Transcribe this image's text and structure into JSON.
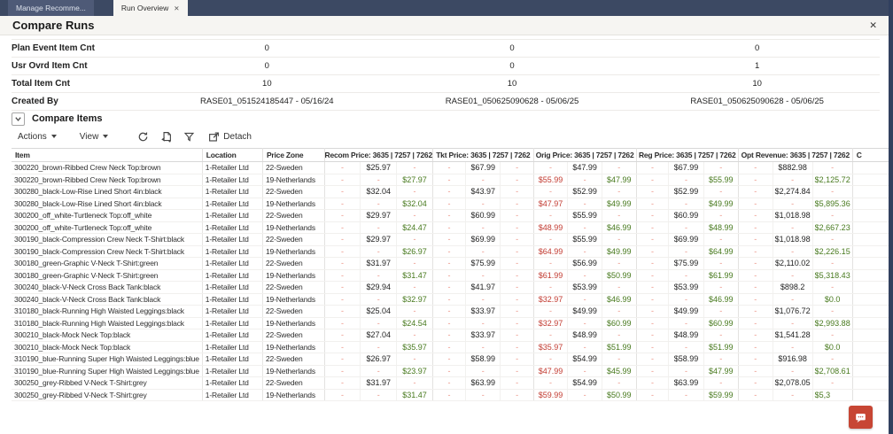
{
  "tabs": [
    {
      "label": "Manage Recomme..."
    },
    {
      "label": "Run Overview",
      "close_icon": "✕"
    }
  ],
  "panel": {
    "title": "Compare Runs",
    "close_icon": "✕"
  },
  "summary": {
    "rows": [
      {
        "label": "Plan Event Item Cnt",
        "values": [
          "0",
          "0",
          "0"
        ]
      },
      {
        "label": "Usr Ovrd Item Cnt",
        "values": [
          "0",
          "0",
          "1"
        ]
      },
      {
        "label": "Total Item Cnt",
        "values": [
          "10",
          "10",
          "10"
        ]
      },
      {
        "label": "Created By",
        "values": [
          "RASE01_051524185447 - 05/16/24",
          "RASE01_050625090628 - 05/06/25",
          "RASE01_050625090628 - 05/06/25"
        ]
      }
    ]
  },
  "section": {
    "title": "Compare Items"
  },
  "toolbar": {
    "actions_label": "Actions",
    "view_label": "View",
    "detach_label": "Detach",
    "icons": [
      "refresh-icon",
      "export-icon",
      "filter-icon",
      "detach-icon"
    ]
  },
  "table": {
    "columns": [
      "Item",
      "Location",
      "Price Zone"
    ],
    "price_groups": [
      "Recom Price: 3635 | 7257 | 7262",
      "Tkt Price: 3635 | 7257 | 7262",
      "Orig Price: 3635 | 7257 | 7262",
      "Reg Price: 3635 | 7257 | 7262",
      "Opt Revenue: 3635 | 7257 | 7262"
    ],
    "cut_column": "C",
    "clipped_value": "$5,3",
    "rows": [
      {
        "item": "300220_brown-Ribbed Crew Neck Top:brown",
        "location": "1-Retailer Ltd",
        "zone": "22-Sweden",
        "groups": [
          [
            "-",
            "$25.97",
            "-"
          ],
          [
            "-",
            "$67.99",
            "-"
          ],
          [
            "-",
            "$47.99",
            "-"
          ],
          [
            "-",
            "$67.99",
            "-"
          ],
          [
            "-",
            "$882.98",
            "-"
          ]
        ]
      },
      {
        "item": "300220_brown-Ribbed Crew Neck Top:brown",
        "location": "1-Retailer Ltd",
        "zone": "19-Netherlands",
        "groups": [
          [
            "-",
            "-",
            "$27.97"
          ],
          [
            "-",
            "-",
            "-"
          ],
          [
            "$55.99",
            "-",
            "$47.99"
          ],
          [
            "-",
            "-",
            "$55.99"
          ],
          [
            "-",
            "-",
            "$2,125.72"
          ]
        ]
      },
      {
        "item": "300280_black-Low-Rise Lined Short 4in:black",
        "location": "1-Retailer Ltd",
        "zone": "22-Sweden",
        "groups": [
          [
            "-",
            "$32.04",
            "-"
          ],
          [
            "-",
            "$43.97",
            "-"
          ],
          [
            "-",
            "$52.99",
            "-"
          ],
          [
            "-",
            "$52.99",
            "-"
          ],
          [
            "-",
            "$2,274.84",
            "-"
          ]
        ]
      },
      {
        "item": "300280_black-Low-Rise Lined Short 4in:black",
        "location": "1-Retailer Ltd",
        "zone": "19-Netherlands",
        "groups": [
          [
            "-",
            "-",
            "$32.04"
          ],
          [
            "-",
            "-",
            "-"
          ],
          [
            "$47.97",
            "-",
            "$49.99"
          ],
          [
            "-",
            "-",
            "$49.99"
          ],
          [
            "-",
            "-",
            "$5,895.36"
          ]
        ]
      },
      {
        "item": "300200_off_white-Turtleneck Top:off_white",
        "location": "1-Retailer Ltd",
        "zone": "22-Sweden",
        "groups": [
          [
            "-",
            "$29.97",
            "-"
          ],
          [
            "-",
            "$60.99",
            "-"
          ],
          [
            "-",
            "$55.99",
            "-"
          ],
          [
            "-",
            "$60.99",
            "-"
          ],
          [
            "-",
            "$1,018.98",
            "-"
          ]
        ]
      },
      {
        "item": "300200_off_white-Turtleneck Top:off_white",
        "location": "1-Retailer Ltd",
        "zone": "19-Netherlands",
        "groups": [
          [
            "-",
            "-",
            "$24.47"
          ],
          [
            "-",
            "-",
            "-"
          ],
          [
            "$48.99",
            "-",
            "$46.99"
          ],
          [
            "-",
            "-",
            "$48.99"
          ],
          [
            "-",
            "-",
            "$2,667.23"
          ]
        ]
      },
      {
        "item": "300190_black-Compression Crew Neck T-Shirt:black",
        "location": "1-Retailer Ltd",
        "zone": "22-Sweden",
        "groups": [
          [
            "-",
            "$29.97",
            "-"
          ],
          [
            "-",
            "$69.99",
            "-"
          ],
          [
            "-",
            "$55.99",
            "-"
          ],
          [
            "-",
            "$69.99",
            "-"
          ],
          [
            "-",
            "$1,018.98",
            "-"
          ]
        ]
      },
      {
        "item": "300190_black-Compression Crew Neck T-Shirt:black",
        "location": "1-Retailer Ltd",
        "zone": "19-Netherlands",
        "groups": [
          [
            "-",
            "-",
            "$26.97"
          ],
          [
            "-",
            "-",
            "-"
          ],
          [
            "$64.99",
            "-",
            "$49.99"
          ],
          [
            "-",
            "-",
            "$64.99"
          ],
          [
            "-",
            "-",
            "$2,226.15"
          ]
        ]
      },
      {
        "item": "300180_green-Graphic V-Neck T-Shirt:green",
        "location": "1-Retailer Ltd",
        "zone": "22-Sweden",
        "groups": [
          [
            "-",
            "$31.97",
            "-"
          ],
          [
            "-",
            "$75.99",
            "-"
          ],
          [
            "-",
            "$56.99",
            "-"
          ],
          [
            "-",
            "$75.99",
            "-"
          ],
          [
            "-",
            "$2,110.02",
            "-"
          ]
        ]
      },
      {
        "item": "300180_green-Graphic V-Neck T-Shirt:green",
        "location": "1-Retailer Ltd",
        "zone": "19-Netherlands",
        "groups": [
          [
            "-",
            "-",
            "$31.47"
          ],
          [
            "-",
            "-",
            "-"
          ],
          [
            "$61.99",
            "-",
            "$50.99"
          ],
          [
            "-",
            "-",
            "$61.99"
          ],
          [
            "-",
            "-",
            "$5,318.43"
          ]
        ]
      },
      {
        "item": "300240_black-V-Neck Cross Back Tank:black",
        "location": "1-Retailer Ltd",
        "zone": "22-Sweden",
        "groups": [
          [
            "-",
            "$29.94",
            "-"
          ],
          [
            "-",
            "$41.97",
            "-"
          ],
          [
            "-",
            "$53.99",
            "-"
          ],
          [
            "-",
            "$53.99",
            "-"
          ],
          [
            "-",
            "$898.2",
            "-"
          ]
        ]
      },
      {
        "item": "300240_black-V-Neck Cross Back Tank:black",
        "location": "1-Retailer Ltd",
        "zone": "19-Netherlands",
        "groups": [
          [
            "-",
            "-",
            "$32.97"
          ],
          [
            "-",
            "-",
            "-"
          ],
          [
            "$32.97",
            "-",
            "$46.99"
          ],
          [
            "-",
            "-",
            "$46.99"
          ],
          [
            "-",
            "-",
            "$0.0"
          ]
        ]
      },
      {
        "item": "310180_black-Running High Waisted Leggings:black",
        "location": "1-Retailer Ltd",
        "zone": "22-Sweden",
        "groups": [
          [
            "-",
            "$25.04",
            "-"
          ],
          [
            "-",
            "$33.97",
            "-"
          ],
          [
            "-",
            "$49.99",
            "-"
          ],
          [
            "-",
            "$49.99",
            "-"
          ],
          [
            "-",
            "$1,076.72",
            "-"
          ]
        ]
      },
      {
        "item": "310180_black-Running High Waisted Leggings:black",
        "location": "1-Retailer Ltd",
        "zone": "19-Netherlands",
        "groups": [
          [
            "-",
            "-",
            "$24.54"
          ],
          [
            "-",
            "-",
            "-"
          ],
          [
            "$32.97",
            "-",
            "$60.99"
          ],
          [
            "-",
            "-",
            "$60.99"
          ],
          [
            "-",
            "-",
            "$2,993.88"
          ]
        ]
      },
      {
        "item": "300210_black-Mock Neck Top:black",
        "location": "1-Retailer Ltd",
        "zone": "22-Sweden",
        "groups": [
          [
            "-",
            "$27.04",
            "-"
          ],
          [
            "-",
            "$33.97",
            "-"
          ],
          [
            "-",
            "$48.99",
            "-"
          ],
          [
            "-",
            "$48.99",
            "-"
          ],
          [
            "-",
            "$1,541.28",
            "-"
          ]
        ]
      },
      {
        "item": "300210_black-Mock Neck Top:black",
        "location": "1-Retailer Ltd",
        "zone": "19-Netherlands",
        "groups": [
          [
            "-",
            "-",
            "$35.97"
          ],
          [
            "-",
            "-",
            "-"
          ],
          [
            "$35.97",
            "-",
            "$51.99"
          ],
          [
            "-",
            "-",
            "$51.99"
          ],
          [
            "-",
            "-",
            "$0.0"
          ]
        ]
      },
      {
        "item": "310190_blue-Running Super High Waisted Leggings:blue",
        "location": "1-Retailer Ltd",
        "zone": "22-Sweden",
        "groups": [
          [
            "-",
            "$26.97",
            "-"
          ],
          [
            "-",
            "$58.99",
            "-"
          ],
          [
            "-",
            "$54.99",
            "-"
          ],
          [
            "-",
            "$58.99",
            "-"
          ],
          [
            "-",
            "$916.98",
            "-"
          ]
        ]
      },
      {
        "item": "310190_blue-Running Super High Waisted Leggings:blue",
        "location": "1-Retailer Ltd",
        "zone": "19-Netherlands",
        "groups": [
          [
            "-",
            "-",
            "$23.97"
          ],
          [
            "-",
            "-",
            "-"
          ],
          [
            "$47.99",
            "-",
            "$45.99"
          ],
          [
            "-",
            "-",
            "$47.99"
          ],
          [
            "-",
            "-",
            "$2,708.61"
          ]
        ]
      },
      {
        "item": "300250_grey-Ribbed V-Neck T-Shirt:grey",
        "location": "1-Retailer Ltd",
        "zone": "22-Sweden",
        "groups": [
          [
            "-",
            "$31.97",
            "-"
          ],
          [
            "-",
            "$63.99",
            "-"
          ],
          [
            "-",
            "$54.99",
            "-"
          ],
          [
            "-",
            "$63.99",
            "-"
          ],
          [
            "-",
            "$2,078.05",
            "-"
          ]
        ]
      },
      {
        "item": "300250_grey-Ribbed V-Neck T-Shirt:grey",
        "location": "1-Retailer Ltd",
        "zone": "19-Netherlands",
        "groups": [
          [
            "-",
            "-",
            "$31.47"
          ],
          [
            "-",
            "-",
            "-"
          ],
          [
            "$59.99",
            "-",
            "$50.99"
          ],
          [
            "-",
            "-",
            "$59.99"
          ],
          [
            "-",
            "-",
            "$5,3"
          ]
        ]
      }
    ]
  },
  "colors": {
    "tabbar": "#3c4963",
    "window_edge": "#31405f",
    "chat_accent": "#c74634",
    "price_left_run": "#c23b31",
    "price_right_run": "#47791d",
    "empty_dash": "#eb9183"
  }
}
